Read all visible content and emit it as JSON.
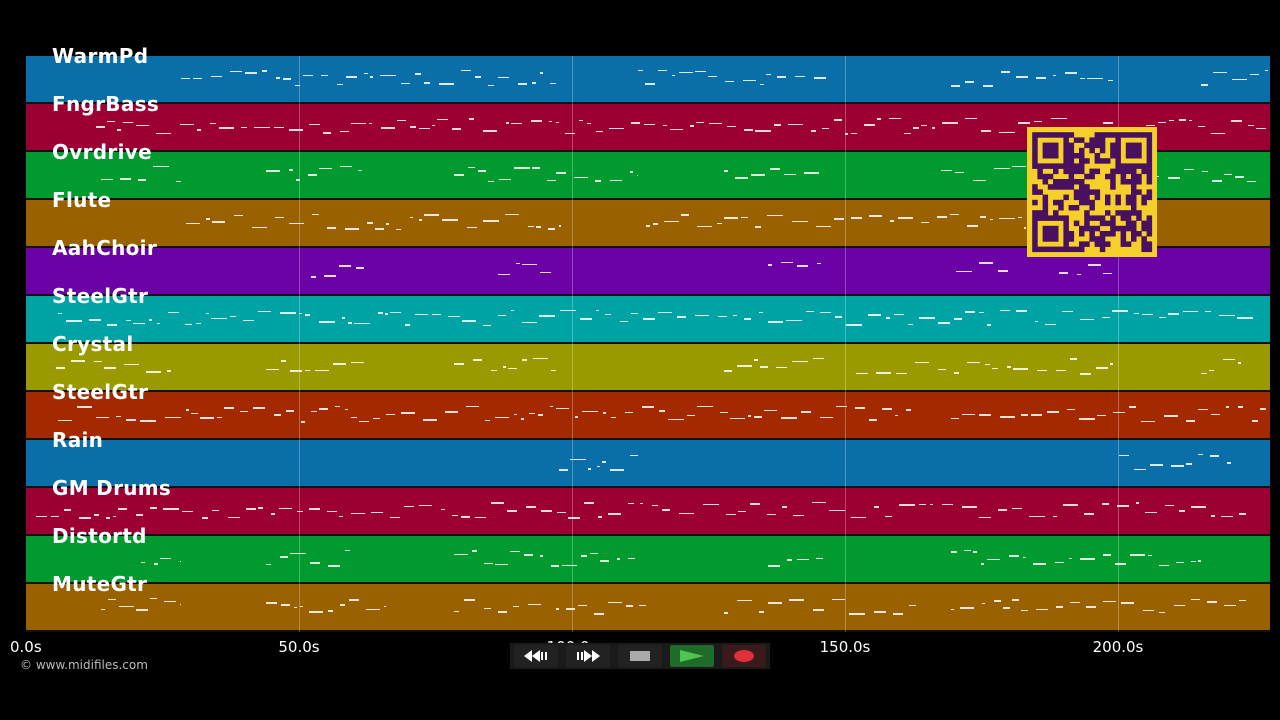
{
  "tracks": [
    {
      "name": "WarmPd",
      "color": "#0a6fa8"
    },
    {
      "name": "FngrBass",
      "color": "#9c0033"
    },
    {
      "name": "Ovrdrive",
      "color": "#009a2e"
    },
    {
      "name": "Flute",
      "color": "#996100"
    },
    {
      "name": "AahChoir",
      "color": "#6a02a6"
    },
    {
      "name": "SteelGtr",
      "color": "#00a3a3"
    },
    {
      "name": "Crystal",
      "color": "#9a9a00"
    },
    {
      "name": "SteelGtr",
      "color": "#a32a00"
    },
    {
      "name": "Rain",
      "color": "#0a6fa8"
    },
    {
      "name": "GM Drums",
      "color": "#9c0033"
    },
    {
      "name": "Distortd",
      "color": "#009a2e"
    },
    {
      "name": "MuteGtr",
      "color": "#996100"
    }
  ],
  "timeline": {
    "ticks": [
      "0.0s",
      "50.0s",
      "100.0s",
      "150.0s",
      "200.0s"
    ],
    "max_seconds": 228
  },
  "transport": {
    "rewind_icon": "rewind-icon",
    "forward_icon": "fast-forward-icon",
    "stop_icon": "stop-icon",
    "play_icon": "play-icon",
    "record_icon": "record-icon"
  },
  "copyright": "© www.midifiles.com",
  "qr_code": {
    "icon": "qr-code",
    "color": "#f5d02a",
    "dark": "#4a1060"
  }
}
